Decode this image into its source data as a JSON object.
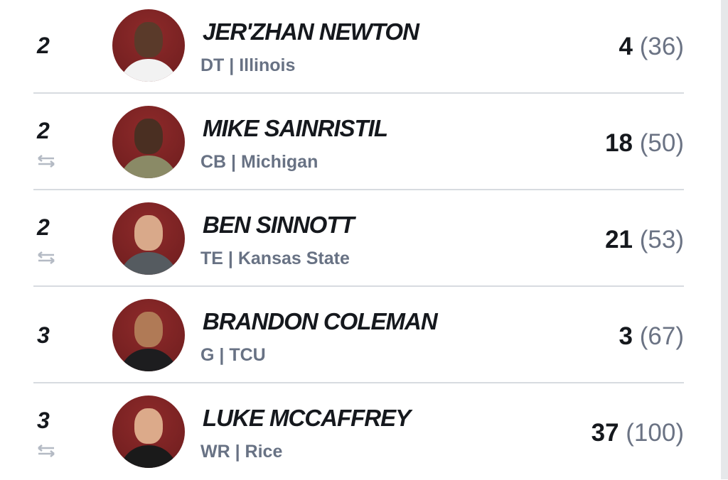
{
  "picks": [
    {
      "round": "2",
      "traded": false,
      "name": "Jer'Zhan Newton",
      "position": "DT",
      "school": "Illinois",
      "round_pick": "4",
      "overall": "(36)",
      "skin": "#5a3a2a",
      "shirt": "#f2f2f2"
    },
    {
      "round": "2",
      "traded": true,
      "name": "Mike Sainristil",
      "position": "CB",
      "school": "Michigan",
      "round_pick": "18",
      "overall": "(50)",
      "skin": "#4a2f22",
      "shirt": "#8a8a66"
    },
    {
      "round": "2",
      "traded": true,
      "name": "Ben Sinnott",
      "position": "TE",
      "school": "Kansas State",
      "round_pick": "21",
      "overall": "(53)",
      "skin": "#d9a98a",
      "shirt": "#555b60"
    },
    {
      "round": "3",
      "traded": false,
      "name": "Brandon Coleman",
      "position": "G",
      "school": "TCU",
      "round_pick": "3",
      "overall": "(67)",
      "skin": "#b07a56",
      "shirt": "#1d1d1f"
    },
    {
      "round": "3",
      "traded": true,
      "name": "Luke McCaffrey",
      "position": "WR",
      "school": "Rice",
      "round_pick": "37",
      "overall": "(100)",
      "skin": "#dcaa8a",
      "shirt": "#1a1a1a"
    }
  ],
  "separator": " | ",
  "colors": {
    "avatar_bg": "#7a2223",
    "text": "#15181d",
    "muted": "#687284"
  }
}
